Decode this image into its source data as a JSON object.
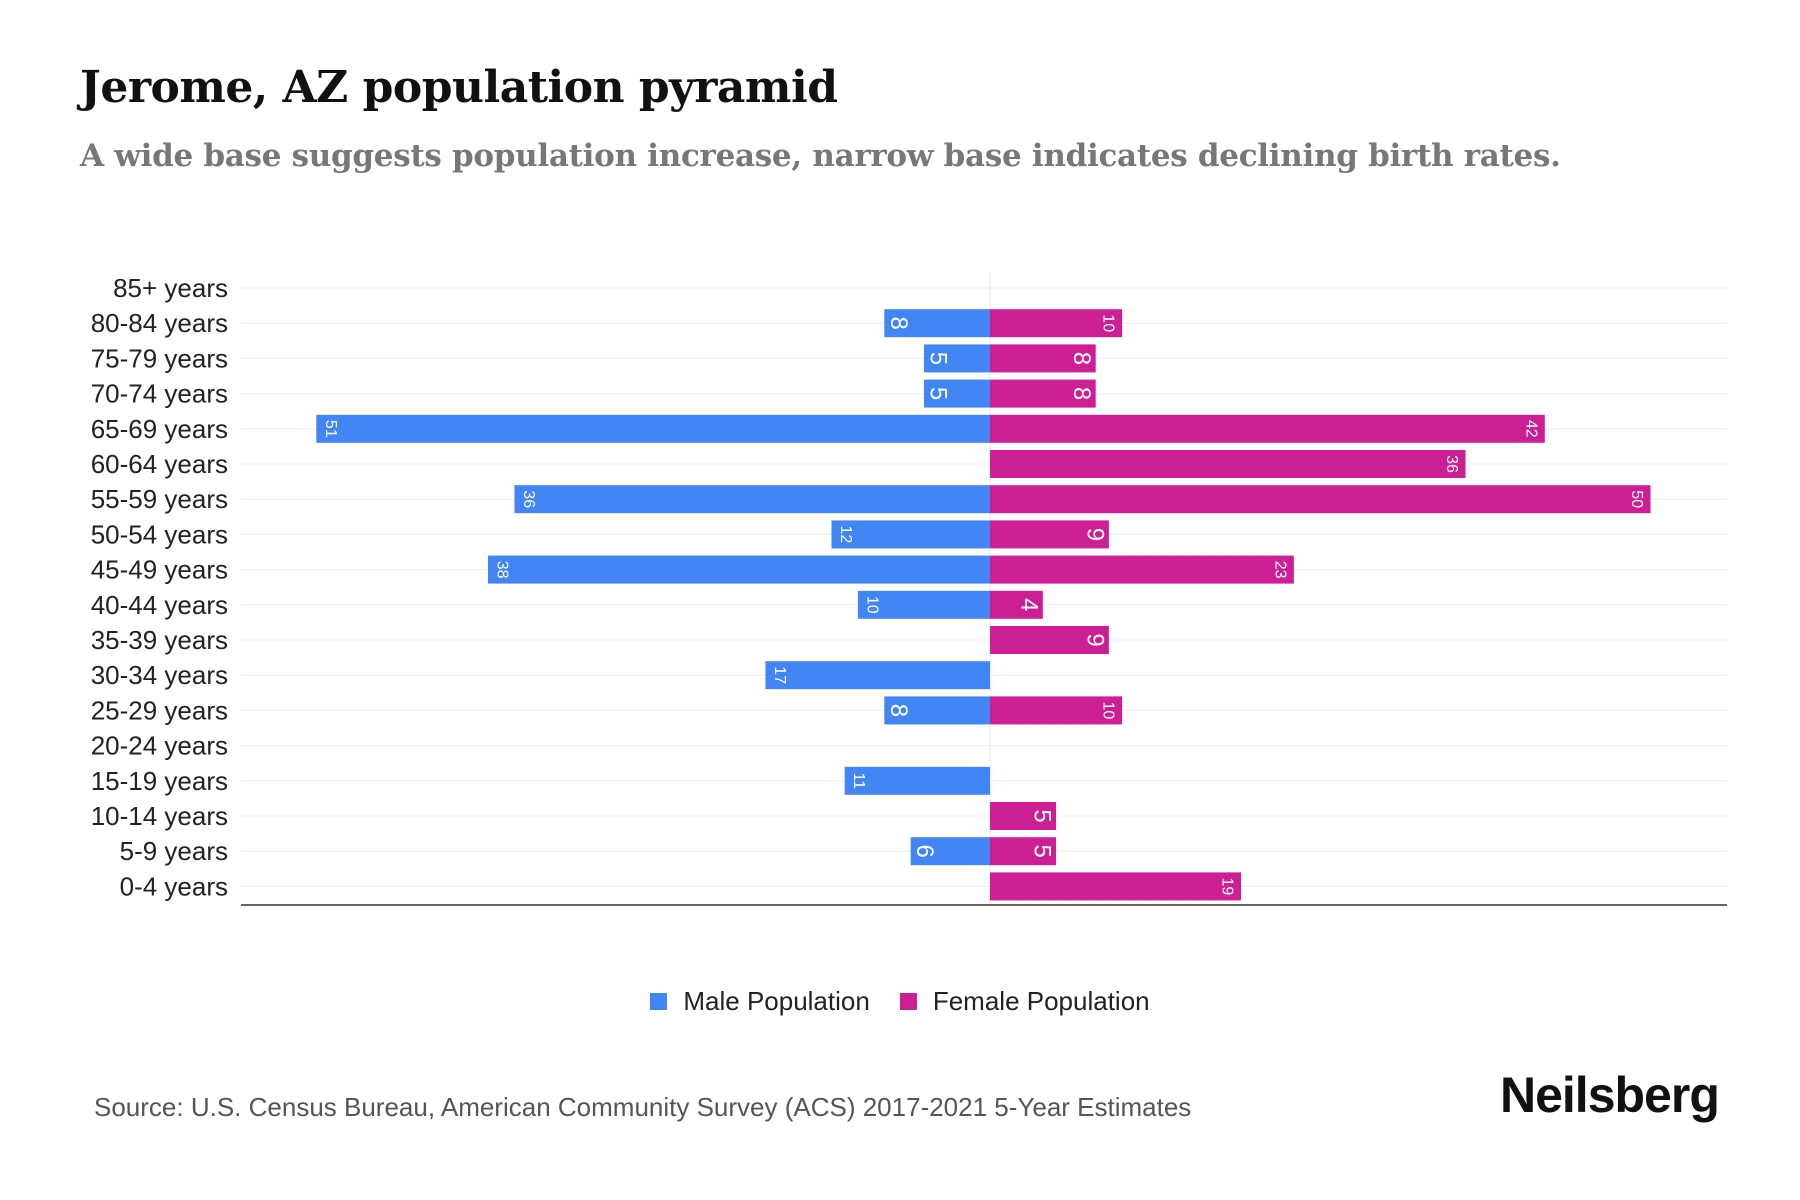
{
  "title": "Jerome, AZ population pyramid",
  "subtitle": "A wide base suggests population increase, narrow base indicates declining birth rates.",
  "source": "Source: U.S. Census Bureau, American Community Survey (ACS) 2017-2021 5-Year Estimates",
  "logo": "Neilsberg",
  "colors": {
    "male": "#4285f4",
    "female": "#cc1f93"
  },
  "chart_data": {
    "type": "bar",
    "orientation": "horizontal-pyramid",
    "title": "Jerome, AZ population pyramid",
    "categories": [
      "85+ years",
      "80-84 years",
      "75-79 years",
      "70-74 years",
      "65-69 years",
      "60-64 years",
      "55-59 years",
      "50-54 years",
      "45-49 years",
      "40-44 years",
      "35-39 years",
      "30-34 years",
      "25-29 years",
      "20-24 years",
      "15-19 years",
      "10-14 years",
      "5-9 years",
      "0-4 years"
    ],
    "series": [
      {
        "name": "Male Population",
        "values": [
          0,
          8,
          5,
          5,
          51,
          0,
          36,
          12,
          38,
          10,
          0,
          17,
          8,
          0,
          11,
          0,
          6,
          0
        ]
      },
      {
        "name": "Female Population",
        "values": [
          0,
          10,
          8,
          8,
          42,
          36,
          50,
          9,
          23,
          4,
          9,
          0,
          10,
          0,
          0,
          5,
          5,
          19
        ]
      }
    ],
    "xlim": [
      -56.7,
      56.7
    ],
    "grid": true,
    "legend": "bottom-center"
  }
}
